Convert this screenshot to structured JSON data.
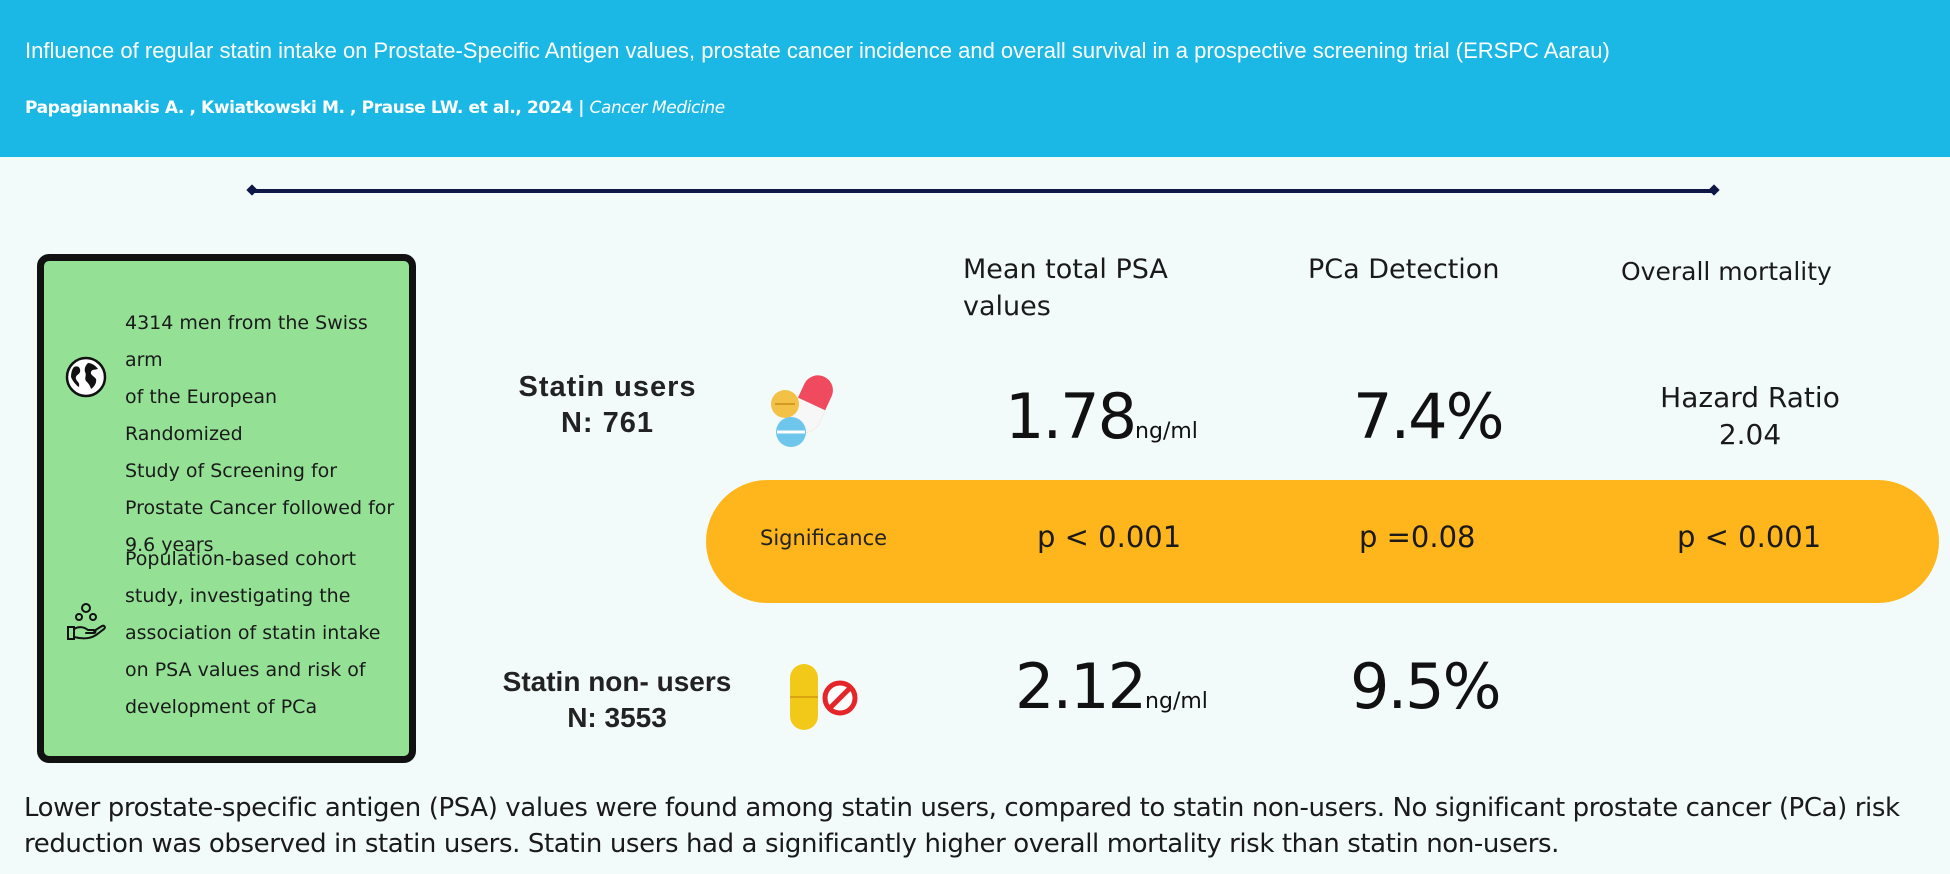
{
  "header": {
    "title": "Influence of regular statin intake on Prostate-Specific Antigen values, prostate cancer incidence and overall survival in a prospective screening trial (ERSPC Aarau)",
    "authors": "Papagiannakis A. , Kwiatkowski M. , Prause LW. et al., 2024  |  ",
    "journal": "Cancer Medicine"
  },
  "info_box": {
    "population_text": "4314 men from the Swiss arm\nof the European Randomized\nStudy of Screening for\nProstate Cancer followed for\n 9.6 years",
    "population_icon": "globe-icon",
    "design_text": "Population-based cohort\nstudy, investigating the\nassociation of statin intake\non PSA values and risk of\ndevelopment of PCa",
    "design_icon": "hand-with-people-icon"
  },
  "columns": {
    "psa": "Mean total PSA values",
    "detection": "PCa Detection",
    "mortality": "Overall mortality"
  },
  "statin_users": {
    "label": "Statin users",
    "n": "N:  761",
    "icon": "pills-icon",
    "psa_value": "1.78",
    "psa_unit": "ng/ml",
    "detection": "7.4%",
    "hazard_label": "Hazard Ratio",
    "hazard_value": "2.04"
  },
  "significance": {
    "label": "Significance",
    "psa_p": "p < 0.001",
    "detection_p": "p =0.08",
    "mortality_p": "p < 0.001"
  },
  "non_users": {
    "label": "Statin non- users",
    "n": "N:  3553",
    "icon": "no-pill-icon",
    "psa_value": "2.12",
    "psa_unit": "ng/ml",
    "detection": "9.5%"
  },
  "footer": {
    "summary": "Lower prostate-specific antigen (PSA) values were found among statin users, compared to statin non-users. No significant prostate cancer (PCa) risk reduction was observed in statin users. Statin users had a significantly higher overall mortality risk than statin non-users."
  },
  "colors": {
    "header": "#1bb8e6",
    "info_box": "#94e196",
    "significance_pill": "#ffb51c",
    "divider": "#0f1747"
  }
}
